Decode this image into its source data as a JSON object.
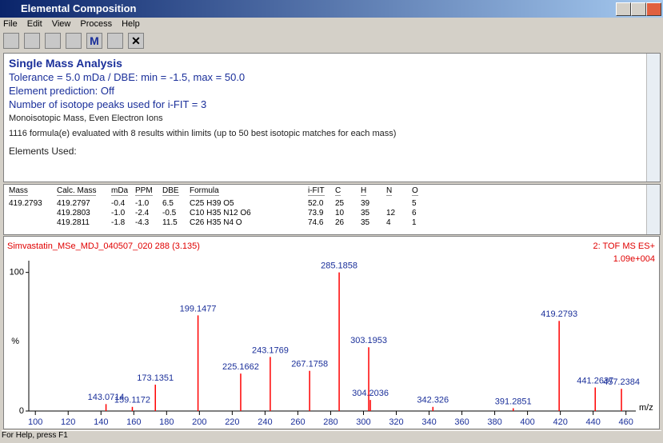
{
  "window": {
    "title": "Elemental Composition"
  },
  "menu": [
    "File",
    "Edit",
    "View",
    "Process",
    "Help"
  ],
  "toolbar": {
    "m_button": "M"
  },
  "analysis": {
    "heading": "Single Mass Analysis",
    "lines": [
      "Tolerance = 5.0 mDa  /  DBE: min = -1.5, max = 50.0",
      "Element prediction: Off",
      "Number of isotope peaks used for i-FIT = 3"
    ],
    "notes": [
      "Monoisotopic Mass, Even Electron Ions",
      "1116 formula(e) evaluated with 8 results within limits (up to 50 best isotopic matches for each mass)",
      "Elements Used:"
    ]
  },
  "table": {
    "columns": [
      "Mass",
      "Calc. Mass",
      "mDa",
      "PPM",
      "DBE",
      "Formula",
      "i-FIT",
      "C",
      "H",
      "N",
      "O"
    ],
    "rows": [
      [
        "419.2793",
        "419.2797",
        "-0.4",
        "-1.0",
        "6.5",
        "C25 H39 O5",
        "52.0",
        "25",
        "39",
        null,
        "5"
      ],
      [
        null,
        "419.2803",
        "-1.0",
        "-2.4",
        "-0.5",
        "C10 H35 N12 O6",
        "73.9",
        "10",
        "35",
        "12",
        "6"
      ],
      [
        null,
        "419.2811",
        "-1.8",
        "-4.3",
        "11.5",
        "C26 H35 N4 O",
        "74.6",
        "26",
        "35",
        "4",
        "1"
      ]
    ]
  },
  "chart_data": {
    "type": "bar",
    "title": "Simvastatin_MSe_MDJ_040507_020 288 (3.135)",
    "subtitle": "2: TOF MS ES+",
    "intensity": "1.09e+004",
    "x": [
      143.0714,
      159.1172,
      173.1351,
      199.1477,
      225.1662,
      243.1769,
      267.1758,
      285.1858,
      303.1953,
      304.2036,
      342.326,
      391.2851,
      419.2793,
      441.2637,
      457.2384
    ],
    "values": [
      5,
      3,
      19,
      69,
      27,
      39,
      29,
      100,
      46,
      8,
      3,
      2,
      65,
      17,
      16
    ],
    "color": "#ff0000",
    "xlim": [
      96,
      466
    ],
    "ylim": [
      0,
      120
    ],
    "xticks": [
      100,
      120,
      140,
      160,
      180,
      200,
      220,
      240,
      260,
      280,
      300,
      320,
      340,
      360,
      380,
      400,
      420,
      440,
      460
    ],
    "yticks": [
      0,
      100
    ],
    "ylabel": "%",
    "xlabel": "m/z",
    "grid": false
  },
  "status_bar": "For Help, press F1"
}
